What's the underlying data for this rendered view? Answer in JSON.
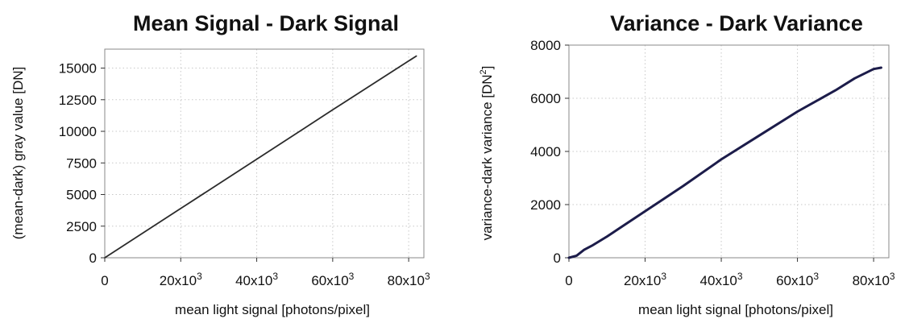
{
  "chart_data": [
    {
      "type": "line",
      "title": "Mean Signal - Dark Signal",
      "xlabel": "mean light signal [photons/pixel]",
      "ylabel": "(mean-dark) gray value [DN]",
      "xlim": [
        0,
        84000
      ],
      "ylim": [
        0,
        16500
      ],
      "xticks": [
        0,
        20000,
        40000,
        60000,
        80000
      ],
      "xtick_labels": [
        {
          "base": "0",
          "exp": ""
        },
        {
          "base": "20x10",
          "exp": "3"
        },
        {
          "base": "40x10",
          "exp": "3"
        },
        {
          "base": "60x10",
          "exp": "3"
        },
        {
          "base": "80x10",
          "exp": "3"
        }
      ],
      "yticks": [
        0,
        2500,
        5000,
        7500,
        10000,
        12500,
        15000
      ],
      "ytick_labels": [
        "0",
        "2500",
        "5000",
        "7500",
        "10000",
        "12500",
        "15000"
      ],
      "grid": true,
      "line_color": "#2b2b2b",
      "series": [
        {
          "x": [
            0,
            20000,
            40000,
            60000,
            82000
          ],
          "y": [
            0,
            3900,
            7800,
            11700,
            15950
          ]
        }
      ]
    },
    {
      "type": "line",
      "title": "Variance - Dark Variance",
      "xlabel": "mean light signal [photons/pixel]",
      "ylabel": "variance-dark variance [DN",
      "ylabel_sup": "2",
      "ylabel_end": "]",
      "xlim": [
        0,
        84000
      ],
      "ylim": [
        0,
        8000
      ],
      "xticks": [
        0,
        20000,
        40000,
        60000,
        80000
      ],
      "xtick_labels": [
        {
          "base": "0",
          "exp": ""
        },
        {
          "base": "20x10",
          "exp": "3"
        },
        {
          "base": "40x10",
          "exp": "3"
        },
        {
          "base": "60x10",
          "exp": "3"
        },
        {
          "base": "80x10",
          "exp": "3"
        }
      ],
      "yticks": [
        0,
        2000,
        4000,
        6000,
        8000
      ],
      "ytick_labels": [
        "0",
        "2000",
        "4000",
        "6000",
        "8000"
      ],
      "grid": true,
      "line_color": "#1c1c4a",
      "series": [
        {
          "x": [
            0,
            2000,
            4000,
            6000,
            10000,
            20000,
            30000,
            40000,
            50000,
            60000,
            70000,
            75000,
            80000,
            82000
          ],
          "y": [
            0,
            80,
            300,
            450,
            800,
            1750,
            2700,
            3700,
            4600,
            5500,
            6300,
            6750,
            7100,
            7150
          ]
        }
      ]
    }
  ]
}
